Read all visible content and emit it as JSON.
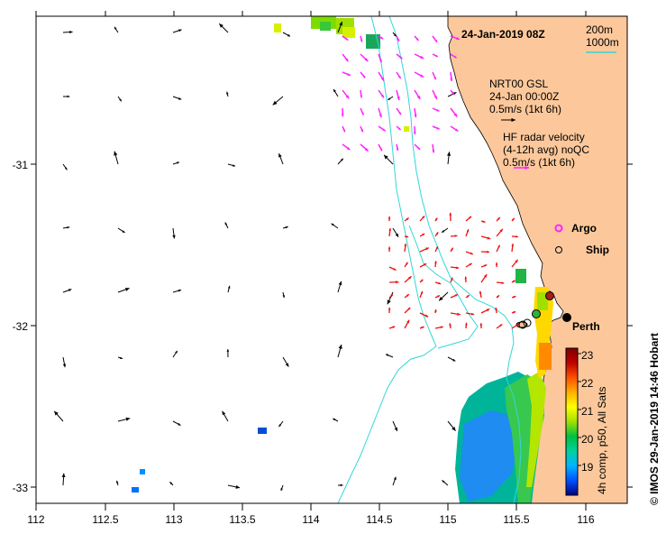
{
  "map": {
    "title": "24-Jan-2019 08Z",
    "credit": "© IMOS 29-Jan-2019 14:46 Hobart",
    "x_ticks": [
      "112",
      "112.5",
      "113",
      "113.5",
      "114",
      "114.5",
      "115",
      "115.5",
      "116"
    ],
    "y_ticks": [
      "-31",
      "-32",
      "-33"
    ],
    "lon_range": [
      112,
      116.3
    ],
    "lat_range": [
      -33.1,
      -30.05
    ]
  },
  "legend": {
    "isobath_1": "200m",
    "isobath_2": "1000m",
    "isobath_color": "#33d6d6",
    "model_line1": "NRT00 GSL",
    "model_line2": "24-Jan 00:00Z",
    "model_line3": "0.5m/s (1kt 6h)",
    "radar_line1": "HF radar velocity",
    "radar_line2": "(4-12h avg) noQC",
    "radar_line3": "0.5m/s (1kt 6h)",
    "radar_color": "#ff22ff",
    "argo_label": "Argo",
    "ship_label": "Ship",
    "city": "Perth"
  },
  "colorbar": {
    "label": "4h comp, p50, All Sats",
    "ticks": [
      "23",
      "22",
      "21",
      "20",
      "19"
    ],
    "range": [
      18.5,
      23.2
    ],
    "colors": [
      "#000080",
      "#0050ff",
      "#00b4ff",
      "#00d0a0",
      "#00c040",
      "#a0e000",
      "#ffff00",
      "#ffb000",
      "#ff5000",
      "#c00000",
      "#800000"
    ]
  },
  "colors": {
    "land": "#fcc89b",
    "coast": "#000000",
    "model_arrow": "#000000",
    "radar_arrow_north": "#ff22ff",
    "radar_arrow_south": "#ee1111"
  }
}
